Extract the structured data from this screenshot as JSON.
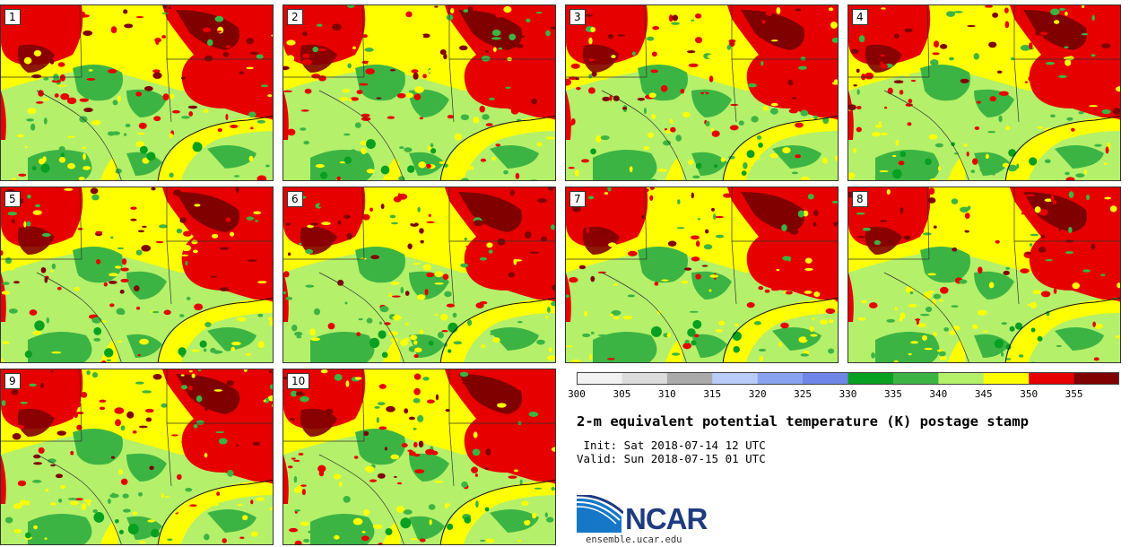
{
  "title": "2-m equivalent potential temperature (K) postage stamp",
  "init": " Init: Sat 2018-07-14 12 UTC",
  "valid": "Valid: Sun 2018-07-15 01 UTC",
  "org": "NCAR",
  "url": "ensemble.ucar.edu",
  "members": [
    "1",
    "2",
    "3",
    "4",
    "5",
    "6",
    "7",
    "8",
    "9",
    "10"
  ],
  "colorbar": {
    "ticks": [
      "300",
      "305",
      "310",
      "315",
      "320",
      "325",
      "330",
      "335",
      "340",
      "345",
      "350",
      "355"
    ],
    "colors": [
      "#f2f2f2",
      "#dcdcdc",
      "#aaaaaa",
      "#b8ccf8",
      "#8aa3f0",
      "#6f86e8",
      "#08a020",
      "#3cb444",
      "#b4f06a",
      "#ffff00",
      "#e60000",
      "#800000"
    ]
  }
}
